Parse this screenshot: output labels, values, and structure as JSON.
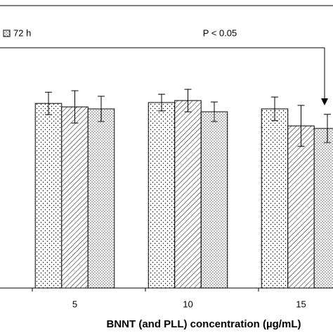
{
  "chart_data": {
    "type": "bar",
    "xlabel": "BNNT (and PLL) concentration (µg/mL)",
    "annotation": "P < 0.05",
    "categories": [
      "5",
      "10",
      "15"
    ],
    "series": [
      {
        "color": "#000000",
        "values": [
          64.1,
          64.4,
          62.2
        ],
        "errors": [
          3.9,
          2.9,
          4.1
        ]
      },
      {
        "color": "#000000",
        "values": [
          62.9,
          65.1,
          56.3
        ],
        "errors": [
          5.6,
          3.9,
          7.1
        ]
      },
      {
        "name": "72 h",
        "color": "#000000",
        "values": [
          62.2,
          61.2,
          55.4
        ],
        "errors": [
          4.4,
          3.4,
          4.9
        ]
      }
    ],
    "ylim": [
      0,
      100
    ]
  }
}
